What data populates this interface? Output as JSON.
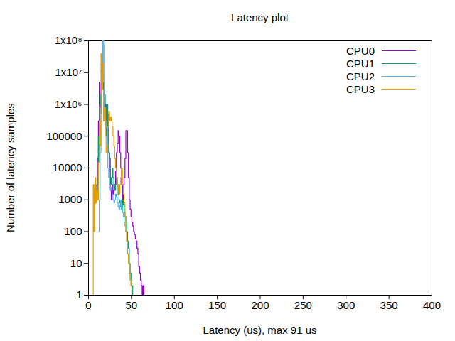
{
  "chart_data": {
    "type": "line",
    "title": "Latency plot",
    "x_label": "Latency (us), max 91 us",
    "y_label": "Number of latency samples",
    "log": "y",
    "grid": false,
    "legend": "top-right",
    "line_style": "step",
    "xlim": [
      0,
      400
    ],
    "xticks": [
      0,
      50,
      100,
      150,
      200,
      250,
      300,
      350,
      400
    ],
    "ylim": [
      1,
      100000000
    ],
    "yticks": [
      1,
      10,
      100,
      1000,
      10000,
      100000,
      {
        "value": 1000000,
        "label": "1x10⁶"
      },
      {
        "value": 10000000,
        "label": "1x10⁷"
      },
      {
        "value": 100000000,
        "label": "1x10⁸"
      }
    ],
    "x": [
      0,
      1,
      2,
      3,
      4,
      5,
      6,
      7,
      8,
      9,
      10,
      11,
      12,
      13,
      14,
      15,
      16,
      17,
      18,
      19,
      20,
      21,
      22,
      23,
      24,
      25,
      26,
      27,
      28,
      29,
      30,
      31,
      32,
      33,
      34,
      35,
      36,
      37,
      38,
      39,
      40,
      41,
      42,
      43,
      44,
      45,
      46,
      47,
      48,
      49,
      50,
      51,
      52,
      53,
      54,
      55,
      56,
      57,
      58,
      59,
      60,
      61,
      62,
      63,
      64,
      65,
      66,
      67,
      68,
      69,
      70,
      71,
      72,
      73,
      74,
      75,
      76,
      77,
      78,
      79,
      80,
      81,
      82,
      83,
      84,
      85,
      86,
      87,
      88,
      89,
      90,
      91
    ],
    "series": [
      {
        "name": "CPU0",
        "color": "#9400d3",
        "values": [
          null,
          null,
          null,
          null,
          null,
          null,
          null,
          null,
          800,
          1500,
          3000,
          20000,
          300000,
          5000000,
          800000,
          2000000,
          30000000,
          70000000,
          2000000,
          400000,
          1000000,
          200000,
          60000,
          500000,
          30000,
          8000,
          2000,
          1000,
          3000,
          1500,
          2000,
          3000,
          8000,
          30000,
          60000,
          150000,
          100000,
          30000,
          10000,
          3000,
          1000,
          3000,
          5000,
          20000,
          150000,
          150000,
          30000,
          5000,
          1000,
          500,
          300,
          200,
          150,
          100,
          80,
          60,
          50,
          30,
          20,
          8,
          5,
          3,
          2,
          1,
          2,
          1,
          1,
          1,
          null,
          null,
          null,
          null,
          null,
          null,
          null,
          null,
          null,
          null,
          null,
          null,
          null,
          null,
          null,
          null,
          null,
          null,
          null,
          null,
          null,
          null,
          1,
          1
        ]
      },
      {
        "name": "CPU1",
        "color": "#009e73",
        "values": [
          null,
          null,
          null,
          null,
          null,
          null,
          null,
          null,
          null,
          null,
          1000,
          5000,
          100000,
          1000000,
          2000000,
          500000,
          20000000,
          80000000,
          3000000,
          2000000,
          600000,
          100000,
          1000000,
          200000,
          30000,
          20000,
          5000,
          3000,
          10000,
          5000,
          3000,
          2000,
          3000,
          5000,
          3000,
          1500,
          1000,
          800,
          600,
          500,
          1000,
          700,
          400,
          300,
          200,
          100,
          50,
          30,
          10,
          5,
          3,
          2,
          1,
          null,
          null,
          null,
          null,
          null,
          null,
          null,
          null,
          null,
          null,
          null,
          null,
          null,
          null,
          null,
          null,
          null,
          null,
          null,
          null,
          null,
          null,
          null,
          null,
          null,
          null,
          null,
          null,
          null,
          null,
          null,
          null,
          null,
          null,
          null,
          null,
          null,
          null,
          null
        ]
      },
      {
        "name": "CPU2",
        "color": "#56b4e9",
        "values": [
          null,
          null,
          null,
          null,
          null,
          null,
          null,
          null,
          null,
          null,
          null,
          null,
          100,
          1000,
          30000,
          500000,
          10000000,
          100000000,
          5000000,
          800000,
          300000,
          200000,
          50000,
          10000,
          5000,
          3000,
          2000,
          2500,
          1500,
          1000,
          800,
          1000,
          1500,
          1200,
          800,
          600,
          500,
          700,
          1000,
          600,
          400,
          300,
          200,
          150,
          100,
          50,
          20,
          10,
          5,
          3,
          2,
          1,
          null,
          null,
          null,
          null,
          null,
          null,
          null,
          null,
          null,
          null,
          null,
          null,
          null,
          null,
          null,
          null,
          null,
          null,
          null,
          null,
          null,
          null,
          null,
          null,
          null,
          null,
          null,
          null,
          null,
          null,
          null,
          null,
          null,
          null,
          null,
          null,
          null,
          null,
          null,
          null
        ]
      },
      {
        "name": "CPU3",
        "color": "#e69f00",
        "values": [
          null,
          null,
          null,
          null,
          null,
          1,
          3000,
          100,
          5000,
          800,
          2000,
          1000,
          15000,
          300000,
          50000,
          40000000,
          20000000,
          3000000,
          300000,
          800000,
          100000,
          30000,
          50000,
          200000,
          600000,
          300000,
          400000,
          300000,
          200000,
          100000,
          50000,
          20000,
          10000,
          5000,
          3000,
          2000,
          1500,
          3000,
          5000,
          10000,
          3000,
          1500,
          800,
          300,
          100,
          50,
          20,
          10,
          5,
          3,
          2,
          1,
          null,
          null,
          null,
          null,
          null,
          null,
          null,
          null,
          null,
          null,
          null,
          null,
          null,
          null,
          null,
          null,
          null,
          null,
          null,
          null,
          null,
          null,
          null,
          null,
          null,
          null,
          null,
          null,
          null,
          null,
          null,
          null,
          null,
          null,
          null,
          null,
          null,
          null,
          null,
          null
        ]
      }
    ]
  }
}
